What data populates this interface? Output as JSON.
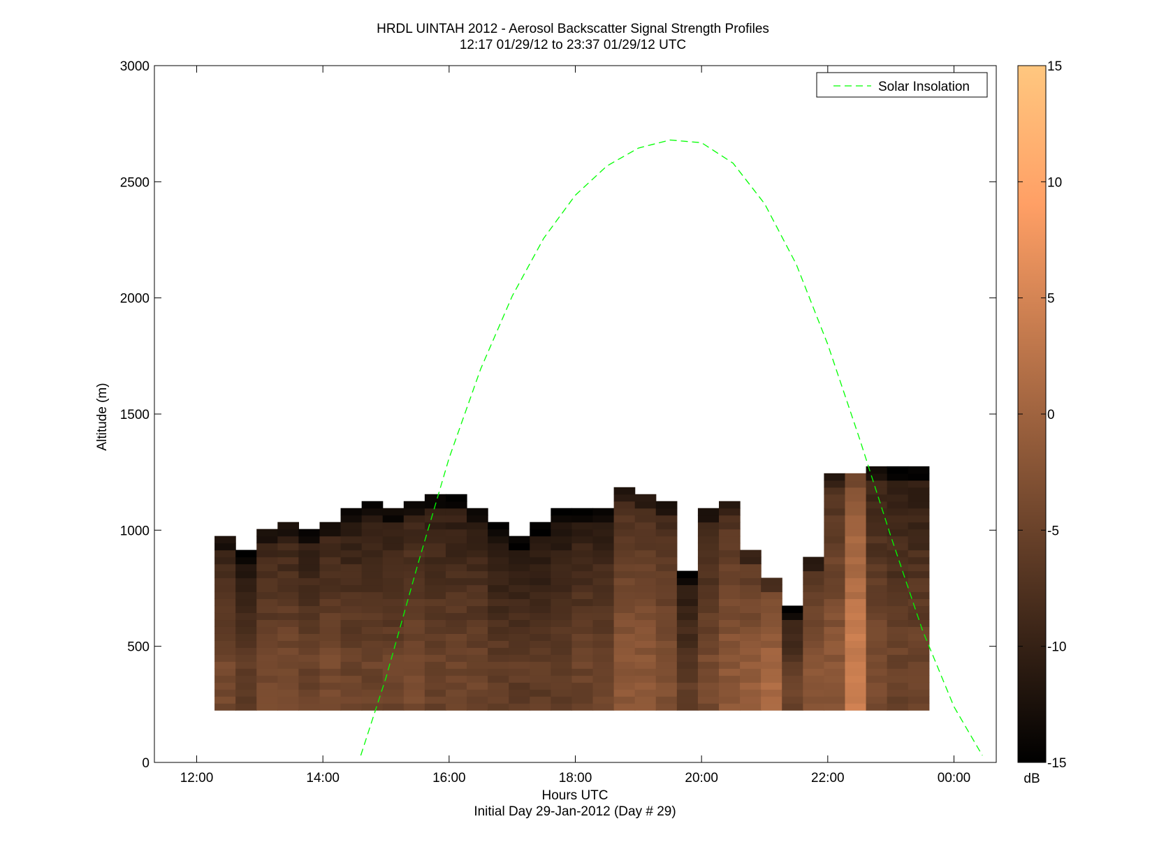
{
  "chart_data": {
    "type": "heatmap",
    "title": "HRDL UINTAH 2012 - Aerosol Backscatter Signal Strength Profiles",
    "subtitle": "12:17 01/29/12 to 23:37 01/29/12  UTC",
    "xlabel": "Hours UTC",
    "xlabel2": "Initial Day 29-Jan-2012 (Day # 29)",
    "ylabel": "Altitude (m)",
    "xlim": [
      11.33,
      24.67
    ],
    "ylim": [
      0,
      3000
    ],
    "x_ticks": [
      12,
      14,
      16,
      18,
      20,
      22,
      24
    ],
    "x_tick_labels": [
      "12:00",
      "14:00",
      "16:00",
      "18:00",
      "20:00",
      "22:00",
      "00:00"
    ],
    "y_ticks": [
      0,
      500,
      1000,
      1500,
      2000,
      2500,
      3000
    ],
    "y_tick_labels": [
      "0",
      "500",
      "1000",
      "1500",
      "2000",
      "2500",
      "3000"
    ],
    "colorbar": {
      "label": "dB",
      "range": [
        -15,
        15
      ],
      "ticks": [
        -15,
        -10,
        -5,
        0,
        5,
        10,
        15
      ],
      "tick_labels": [
        "-15",
        "-10",
        "-5",
        "0",
        "5",
        "10",
        "15"
      ],
      "colormap": "copper"
    },
    "grid": false,
    "heatmap": {
      "x_start_hours": 12.283,
      "bin_hours": 0.333,
      "y_bottom_m": 225,
      "bin_m": 30,
      "column_tops_m": [
        980,
        920,
        1010,
        1040,
        1010,
        1040,
        1100,
        1130,
        1100,
        1130,
        1160,
        1160,
        1100,
        1040,
        980,
        1040,
        1100,
        1100,
        1100,
        1190,
        1160,
        1130,
        830,
        1100,
        1130,
        920,
        800,
        680,
        890,
        1250,
        1250,
        1280,
        1280,
        1280
      ],
      "column_low_level_db": [
        -4,
        -6,
        -4,
        -4,
        -5,
        -4,
        -5,
        -5,
        -5,
        -4,
        -5,
        -5,
        -5,
        -6,
        -6,
        -6,
        -6,
        -5,
        -5,
        -2,
        -2,
        -3,
        -6,
        -4,
        -2,
        -1,
        1,
        -5,
        -2,
        -2,
        4,
        -4,
        -5,
        -5
      ]
    },
    "series": [
      {
        "name": "Solar Insolation",
        "style": "dashed",
        "color": "#00ff00",
        "x": [
          14.6,
          15.0,
          15.5,
          16.0,
          16.5,
          17.0,
          17.5,
          18.0,
          18.5,
          19.0,
          19.5,
          20.0,
          20.5,
          21.0,
          21.5,
          22.0,
          22.5,
          23.0,
          23.5,
          24.0,
          24.45
        ],
        "y": [
          30,
          365,
          849,
          1310,
          1694,
          2008,
          2257,
          2442,
          2568,
          2645,
          2680,
          2668,
          2580,
          2405,
          2145,
          1800,
          1397,
          974,
          570,
          240,
          30
        ]
      }
    ],
    "legend": {
      "position": "top-right",
      "entries": [
        "Solar Insolation"
      ]
    }
  }
}
